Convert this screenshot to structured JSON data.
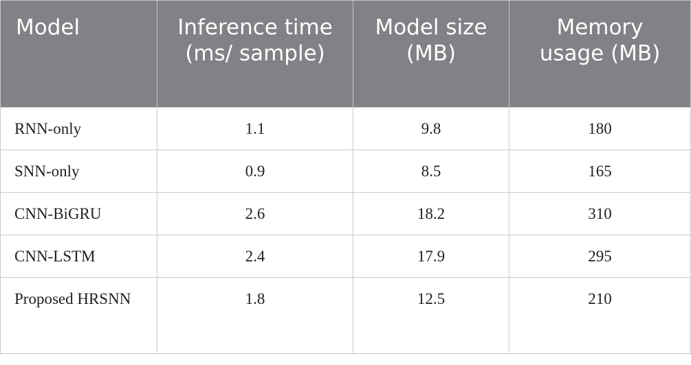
{
  "table": {
    "columns": [
      "Model",
      "Inference time (ms/ sample)",
      "Model size (MB)",
      "Memory usage (MB)"
    ],
    "rows": [
      [
        "RNN-only",
        "1.1",
        "9.8",
        "180"
      ],
      [
        "SNN-only",
        "0.9",
        "8.5",
        "165"
      ],
      [
        "CNN-BiGRU",
        "2.6",
        "18.2",
        "310"
      ],
      [
        "CNN-LSTM",
        "2.4",
        "17.9",
        "295"
      ],
      [
        "Proposed HRSNN",
        "1.8",
        "12.5",
        "210"
      ]
    ]
  }
}
